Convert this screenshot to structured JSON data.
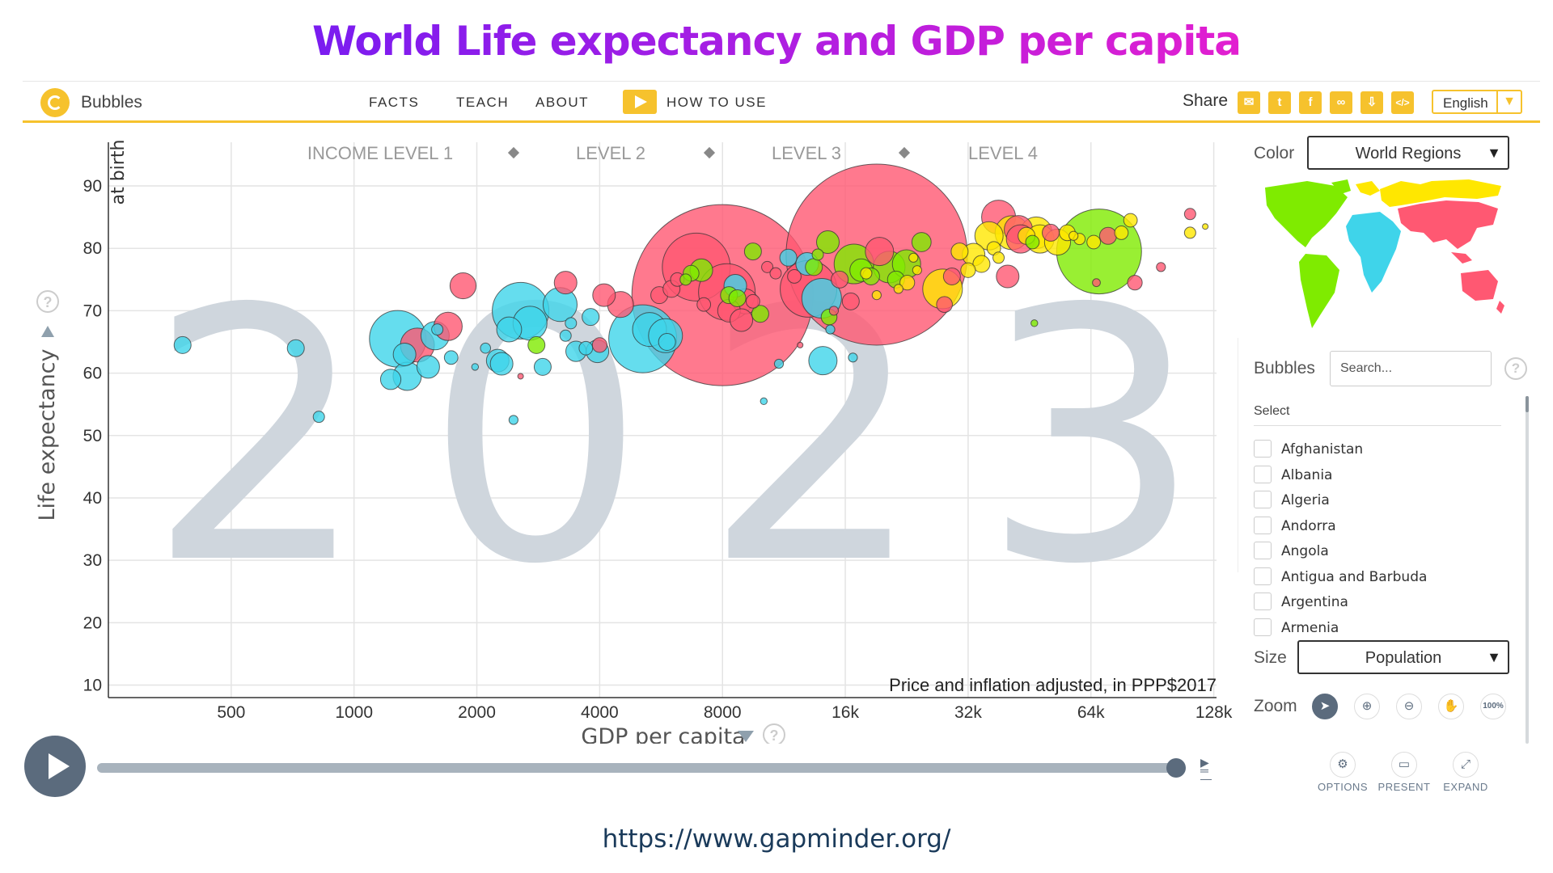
{
  "slide": {
    "title": "World Life expectancy and GDP per capita",
    "url": "https://www.gapminder.org/"
  },
  "topbar": {
    "brand": "Bubbles",
    "nav": [
      "FACTS",
      "TEACH",
      "ABOUT"
    ],
    "how_to_use": "HOW TO USE",
    "share_label": "Share",
    "share_icons": [
      "mail-icon",
      "twitter-icon",
      "facebook-icon",
      "link-icon",
      "download-icon",
      "embed-code-icon"
    ],
    "language": "English",
    "accent": "#f6c22d"
  },
  "chart_data": {
    "type": "scatter",
    "year": "2023",
    "income_levels": [
      "INCOME LEVEL 1",
      "LEVEL 2",
      "LEVEL 3",
      "LEVEL 4"
    ],
    "xlabel": "GDP per capita",
    "ylabel": "Life expectancy",
    "ylabel_sub": "at birth",
    "note": "Price and inflation adjusted, in PPP$2017",
    "x_scale": "log",
    "x_ticks": [
      500,
      1000,
      2000,
      4000,
      8000,
      16000,
      32000,
      64000,
      128000
    ],
    "x_tick_labels": [
      "500",
      "1000",
      "2000",
      "4000",
      "8000",
      "16k",
      "32k",
      "64k",
      "128k"
    ],
    "xlim": [
      250,
      130000
    ],
    "y_ticks": [
      10,
      20,
      30,
      40,
      50,
      60,
      70,
      80,
      90
    ],
    "ylim": [
      8,
      97
    ],
    "grid": true,
    "colors": {
      "africa": "#3fd4ea",
      "asia": "#ff5872",
      "americas": "#7feb00",
      "europe": "#ffe700"
    },
    "points": [
      {
        "x": 380,
        "y": 64.5,
        "r": 1.5,
        "c": "africa"
      },
      {
        "x": 720,
        "y": 64,
        "r": 1.5,
        "c": "africa"
      },
      {
        "x": 820,
        "y": 53,
        "r": 1,
        "c": "africa"
      },
      {
        "x": 1280,
        "y": 65.5,
        "r": 5,
        "c": "africa"
      },
      {
        "x": 1230,
        "y": 59,
        "r": 1.8,
        "c": "africa"
      },
      {
        "x": 1330,
        "y": 63,
        "r": 2,
        "c": "africa"
      },
      {
        "x": 1350,
        "y": 59.5,
        "r": 2.5,
        "c": "africa"
      },
      {
        "x": 1430,
        "y": 64.5,
        "r": 3,
        "c": "asia"
      },
      {
        "x": 1520,
        "y": 61,
        "r": 2,
        "c": "africa"
      },
      {
        "x": 1580,
        "y": 66,
        "r": 2.5,
        "c": "africa"
      },
      {
        "x": 1600,
        "y": 67,
        "r": 1,
        "c": "africa"
      },
      {
        "x": 1700,
        "y": 67.5,
        "r": 2.5,
        "c": "asia"
      },
      {
        "x": 1730,
        "y": 62.5,
        "r": 1.2,
        "c": "africa"
      },
      {
        "x": 1850,
        "y": 74,
        "r": 2.3,
        "c": "asia"
      },
      {
        "x": 1980,
        "y": 61,
        "r": 0.6,
        "c": "africa"
      },
      {
        "x": 2100,
        "y": 64,
        "r": 0.9,
        "c": "africa"
      },
      {
        "x": 2250,
        "y": 62,
        "r": 2,
        "c": "africa"
      },
      {
        "x": 2300,
        "y": 61.5,
        "r": 2,
        "c": "africa"
      },
      {
        "x": 2400,
        "y": 67,
        "r": 2.2,
        "c": "africa"
      },
      {
        "x": 2560,
        "y": 70,
        "r": 5,
        "c": "africa"
      },
      {
        "x": 2460,
        "y": 52.5,
        "r": 0.8,
        "c": "africa"
      },
      {
        "x": 2560,
        "y": 59.5,
        "r": 0.5,
        "c": "asia"
      },
      {
        "x": 2700,
        "y": 68,
        "r": 3,
        "c": "africa"
      },
      {
        "x": 2800,
        "y": 64.5,
        "r": 1.5,
        "c": "americas"
      },
      {
        "x": 2900,
        "y": 61,
        "r": 1.5,
        "c": "africa"
      },
      {
        "x": 3200,
        "y": 71,
        "r": 3,
        "c": "africa"
      },
      {
        "x": 3300,
        "y": 74.5,
        "r": 2,
        "c": "asia"
      },
      {
        "x": 3300,
        "y": 66,
        "r": 1,
        "c": "africa"
      },
      {
        "x": 3400,
        "y": 68,
        "r": 1,
        "c": "africa"
      },
      {
        "x": 3500,
        "y": 63.5,
        "r": 1.8,
        "c": "africa"
      },
      {
        "x": 3700,
        "y": 64,
        "r": 1.2,
        "c": "africa"
      },
      {
        "x": 3800,
        "y": 69,
        "r": 1.5,
        "c": "africa"
      },
      {
        "x": 3950,
        "y": 63.5,
        "r": 2,
        "c": "africa"
      },
      {
        "x": 4000,
        "y": 64.5,
        "r": 1.3,
        "c": "asia"
      },
      {
        "x": 4100,
        "y": 72.5,
        "r": 2,
        "c": "asia"
      },
      {
        "x": 4500,
        "y": 71,
        "r": 2.3,
        "c": "asia"
      },
      {
        "x": 5100,
        "y": 65.5,
        "r": 6,
        "c": "africa"
      },
      {
        "x": 5300,
        "y": 67,
        "r": 3,
        "c": "africa"
      },
      {
        "x": 5600,
        "y": 72.5,
        "r": 1.5,
        "c": "asia"
      },
      {
        "x": 5800,
        "y": 66,
        "r": 3,
        "c": "africa"
      },
      {
        "x": 5850,
        "y": 65,
        "r": 1.5,
        "c": "africa"
      },
      {
        "x": 6000,
        "y": 73.5,
        "r": 1.5,
        "c": "asia"
      },
      {
        "x": 6200,
        "y": 75,
        "r": 1.2,
        "c": "asia"
      },
      {
        "x": 6500,
        "y": 75,
        "r": 1,
        "c": "americas"
      },
      {
        "x": 6700,
        "y": 76,
        "r": 1.4,
        "c": "americas"
      },
      {
        "x": 6900,
        "y": 77,
        "r": 6,
        "c": "asia"
      },
      {
        "x": 7100,
        "y": 76.5,
        "r": 2,
        "c": "americas"
      },
      {
        "x": 7200,
        "y": 71,
        "r": 1.2,
        "c": "asia"
      },
      {
        "x": 8000,
        "y": 72.5,
        "r": 16,
        "c": "asia"
      },
      {
        "x": 8200,
        "y": 73,
        "r": 5,
        "c": "asia"
      },
      {
        "x": 8300,
        "y": 70,
        "r": 2,
        "c": "asia"
      },
      {
        "x": 8300,
        "y": 72.5,
        "r": 1.5,
        "c": "americas"
      },
      {
        "x": 8600,
        "y": 74,
        "r": 2,
        "c": "africa"
      },
      {
        "x": 8700,
        "y": 72,
        "r": 1.5,
        "c": "americas"
      },
      {
        "x": 8900,
        "y": 68.5,
        "r": 2,
        "c": "asia"
      },
      {
        "x": 9100,
        "y": 71.5,
        "r": 2.2,
        "c": "asia"
      },
      {
        "x": 9500,
        "y": 71.5,
        "r": 1.2,
        "c": "asia"
      },
      {
        "x": 9500,
        "y": 79.5,
        "r": 1.5,
        "c": "americas"
      },
      {
        "x": 9900,
        "y": 69.5,
        "r": 1.5,
        "c": "americas"
      },
      {
        "x": 10100,
        "y": 55.5,
        "r": 0.6,
        "c": "africa"
      },
      {
        "x": 10300,
        "y": 77,
        "r": 1,
        "c": "asia"
      },
      {
        "x": 10800,
        "y": 76,
        "r": 1,
        "c": "asia"
      },
      {
        "x": 11000,
        "y": 61.5,
        "r": 0.8,
        "c": "africa"
      },
      {
        "x": 11600,
        "y": 78.5,
        "r": 1.5,
        "c": "africa"
      },
      {
        "x": 12000,
        "y": 75.5,
        "r": 1.2,
        "c": "asia"
      },
      {
        "x": 12400,
        "y": 64.5,
        "r": 0.5,
        "c": "asia"
      },
      {
        "x": 12900,
        "y": 77.5,
        "r": 2,
        "c": "africa"
      },
      {
        "x": 13000,
        "y": 73.5,
        "r": 5,
        "c": "asia"
      },
      {
        "x": 13400,
        "y": 77,
        "r": 1.5,
        "c": "americas"
      },
      {
        "x": 13700,
        "y": 79,
        "r": 1,
        "c": "americas"
      },
      {
        "x": 14000,
        "y": 72,
        "r": 3.5,
        "c": "africa"
      },
      {
        "x": 14100,
        "y": 62,
        "r": 2.5,
        "c": "africa"
      },
      {
        "x": 14500,
        "y": 81,
        "r": 2,
        "c": "americas"
      },
      {
        "x": 14600,
        "y": 69,
        "r": 1.4,
        "c": "americas"
      },
      {
        "x": 14700,
        "y": 67,
        "r": 0.8,
        "c": "africa"
      },
      {
        "x": 15000,
        "y": 70,
        "r": 0.8,
        "c": "asia"
      },
      {
        "x": 15500,
        "y": 75,
        "r": 1.5,
        "c": "asia"
      },
      {
        "x": 16500,
        "y": 71.5,
        "r": 1.5,
        "c": "asia"
      },
      {
        "x": 16800,
        "y": 77.5,
        "r": 3.5,
        "c": "americas"
      },
      {
        "x": 16700,
        "y": 62.5,
        "r": 0.8,
        "c": "africa"
      },
      {
        "x": 17500,
        "y": 76.5,
        "r": 2,
        "c": "americas"
      },
      {
        "x": 19100,
        "y": 79,
        "r": 16,
        "c": "asia"
      },
      {
        "x": 18500,
        "y": 75.5,
        "r": 1.5,
        "c": "americas"
      },
      {
        "x": 18000,
        "y": 76,
        "r": 1,
        "c": "europe"
      },
      {
        "x": 19100,
        "y": 72.5,
        "r": 0.8,
        "c": "europe"
      },
      {
        "x": 19400,
        "y": 79.5,
        "r": 2.5,
        "c": "asia"
      },
      {
        "x": 20500,
        "y": 77,
        "r": 2.8,
        "c": "americas"
      },
      {
        "x": 21300,
        "y": 75,
        "r": 1.5,
        "c": "americas"
      },
      {
        "x": 21600,
        "y": 73.5,
        "r": 0.8,
        "c": "europe"
      },
      {
        "x": 22700,
        "y": 74.5,
        "r": 1.3,
        "c": "europe"
      },
      {
        "x": 22600,
        "y": 77.5,
        "r": 2.5,
        "c": "americas"
      },
      {
        "x": 23500,
        "y": 78.5,
        "r": 0.8,
        "c": "europe"
      },
      {
        "x": 24000,
        "y": 76.5,
        "r": 0.8,
        "c": "europe"
      },
      {
        "x": 24600,
        "y": 81,
        "r": 1.7,
        "c": "americas"
      },
      {
        "x": 27700,
        "y": 73.5,
        "r": 3.5,
        "c": "europe"
      },
      {
        "x": 28000,
        "y": 71,
        "r": 1.4,
        "c": "asia"
      },
      {
        "x": 29200,
        "y": 75.5,
        "r": 1.5,
        "c": "asia"
      },
      {
        "x": 30500,
        "y": 79.5,
        "r": 1.5,
        "c": "europe"
      },
      {
        "x": 32000,
        "y": 76.5,
        "r": 1.3,
        "c": "europe"
      },
      {
        "x": 33000,
        "y": 79,
        "r": 2,
        "c": "europe"
      },
      {
        "x": 34500,
        "y": 77.5,
        "r": 1.5,
        "c": "europe"
      },
      {
        "x": 36000,
        "y": 82,
        "r": 2.5,
        "c": "europe"
      },
      {
        "x": 37000,
        "y": 80,
        "r": 1.2,
        "c": "europe"
      },
      {
        "x": 38000,
        "y": 85,
        "r": 3,
        "c": "asia"
      },
      {
        "x": 38000,
        "y": 78.5,
        "r": 1,
        "c": "europe"
      },
      {
        "x": 40000,
        "y": 75.5,
        "r": 2,
        "c": "asia"
      },
      {
        "x": 41000,
        "y": 82.5,
        "r": 3,
        "c": "europe"
      },
      {
        "x": 42500,
        "y": 83,
        "r": 2.5,
        "c": "asia"
      },
      {
        "x": 43000,
        "y": 81.5,
        "r": 2.5,
        "c": "asia"
      },
      {
        "x": 44500,
        "y": 82,
        "r": 1.5,
        "c": "europe"
      },
      {
        "x": 46000,
        "y": 81,
        "r": 1.2,
        "c": "americas"
      },
      {
        "x": 47000,
        "y": 82.5,
        "r": 2.8,
        "c": "europe"
      },
      {
        "x": 48000,
        "y": 81.5,
        "r": 2.5,
        "c": "europe"
      },
      {
        "x": 46500,
        "y": 68,
        "r": 0.6,
        "c": "americas"
      },
      {
        "x": 51000,
        "y": 82.5,
        "r": 1.5,
        "c": "asia"
      },
      {
        "x": 53000,
        "y": 81,
        "r": 2.3,
        "c": "europe"
      },
      {
        "x": 56000,
        "y": 82.5,
        "r": 1.4,
        "c": "europe"
      },
      {
        "x": 58000,
        "y": 82,
        "r": 0.8,
        "c": "europe"
      },
      {
        "x": 60000,
        "y": 81.5,
        "r": 1,
        "c": "europe"
      },
      {
        "x": 65000,
        "y": 81,
        "r": 1.2,
        "c": "europe"
      },
      {
        "x": 67000,
        "y": 79.5,
        "r": 7.5,
        "c": "americas"
      },
      {
        "x": 70500,
        "y": 82,
        "r": 1.5,
        "c": "asia"
      },
      {
        "x": 66000,
        "y": 74.5,
        "r": 0.7,
        "c": "asia"
      },
      {
        "x": 76000,
        "y": 82.5,
        "r": 1.2,
        "c": "europe"
      },
      {
        "x": 80000,
        "y": 84.5,
        "r": 1.2,
        "c": "europe"
      },
      {
        "x": 82000,
        "y": 74.5,
        "r": 1.3,
        "c": "asia"
      },
      {
        "x": 95000,
        "y": 77,
        "r": 0.8,
        "c": "asia"
      },
      {
        "x": 112000,
        "y": 85.5,
        "r": 1,
        "c": "asia"
      },
      {
        "x": 112000,
        "y": 82.5,
        "r": 1,
        "c": "europe"
      },
      {
        "x": 122000,
        "y": 83.5,
        "r": 0.5,
        "c": "europe"
      }
    ]
  },
  "timeline": {
    "play_icon": "play-icon",
    "progress": 1.0
  },
  "sidebar": {
    "color_label": "Color",
    "color_value": "World Regions",
    "map_colors": [
      "#7feb00",
      "#3fd4ea",
      "#ffe700",
      "#ff5872"
    ],
    "bubbles_label": "Bubbles",
    "search_placeholder": "Search...",
    "select_label": "Select",
    "countries": [
      "Afghanistan",
      "Albania",
      "Algeria",
      "Andorra",
      "Angola",
      "Antigua and Barbuda",
      "Argentina",
      "Armenia"
    ],
    "size_label": "Size",
    "size_value": "Population",
    "zoom_label": "Zoom",
    "zoom_tools": [
      "cursor-icon",
      "zoom-in-icon",
      "zoom-out-icon",
      "hand-pan-icon"
    ],
    "zoom_reset": "100%",
    "options": [
      {
        "label": "OPTIONS",
        "icon": "gear-icon"
      },
      {
        "label": "PRESENT",
        "icon": "present-icon"
      },
      {
        "label": "EXPAND",
        "icon": "expand-icon"
      }
    ]
  }
}
